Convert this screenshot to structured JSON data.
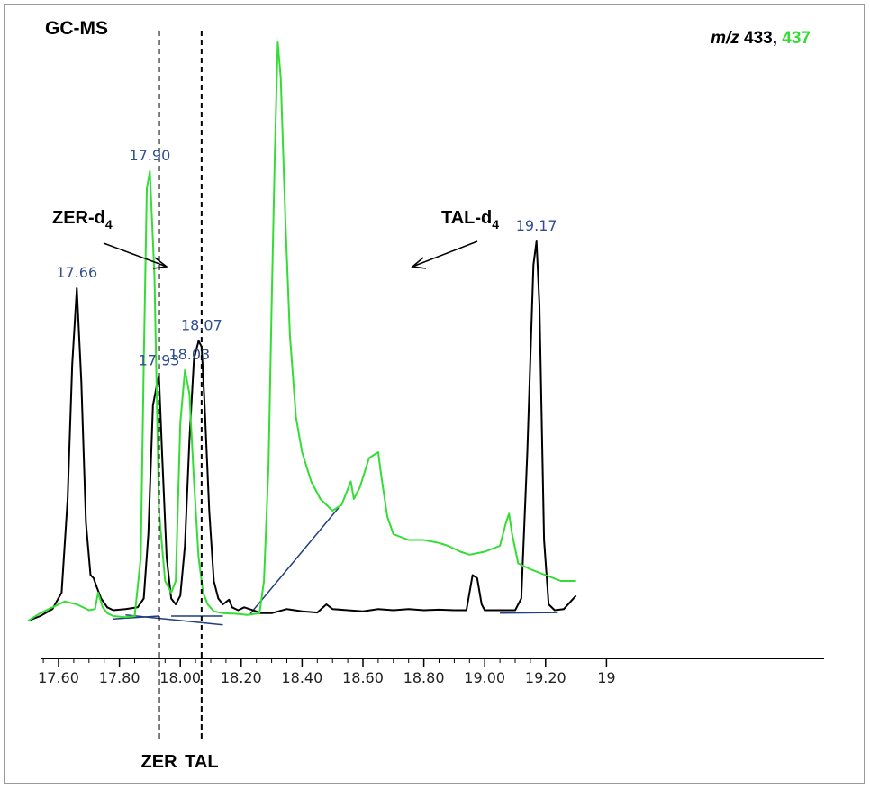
{
  "chart_data": {
    "type": "line",
    "title": "GC-MS",
    "legend": {
      "prefix_italic": "m/z",
      "prefix_rest": " 433, ",
      "second": "437",
      "placement": "top-right"
    },
    "xlim": [
      17.5,
      19.3
    ],
    "xticks": [
      "17.60",
      "17.80",
      "18.00",
      "18.20",
      "18.40",
      "18.60",
      "18.80",
      "19.00",
      "19.20",
      "19"
    ],
    "xtick_values": [
      17.6,
      17.8,
      18.0,
      18.2,
      18.4,
      18.6,
      18.8,
      19.0,
      19.2,
      19.4
    ],
    "grid": false,
    "colors": {
      "ion433": "#000000",
      "ion437": "#33dd33",
      "baseline": "#1f3f7f",
      "labels": "#2f4f8f"
    },
    "series": [
      {
        "key": "ion433",
        "x": [
          17.5,
          17.54,
          17.58,
          17.61,
          17.63,
          17.645,
          17.66,
          17.675,
          17.69,
          17.705,
          17.715,
          17.725,
          17.74,
          17.76,
          17.78,
          17.82,
          17.86,
          17.88,
          17.895,
          17.91,
          17.925,
          17.93,
          17.94,
          17.955,
          17.97,
          17.985,
          18.0,
          18.015,
          18.03,
          18.045,
          18.06,
          18.07,
          18.08,
          18.095,
          18.11,
          18.125,
          18.14,
          18.16,
          18.17,
          18.19,
          18.21,
          18.25,
          18.26,
          18.3,
          18.35,
          18.4,
          18.45,
          18.48,
          18.5,
          18.55,
          18.6,
          18.65,
          18.7,
          18.75,
          18.8,
          18.85,
          18.9,
          18.94,
          18.96,
          18.975,
          18.99,
          19.0,
          19.05,
          19.1,
          19.12,
          19.14,
          19.16,
          19.17,
          19.18,
          19.195,
          19.21,
          19.23,
          19.26,
          19.3
        ],
        "y": [
          1.2,
          2.0,
          3.2,
          6.0,
          22.0,
          45.0,
          58.0,
          42.0,
          18.0,
          9.0,
          8.5,
          7.0,
          5.0,
          3.5,
          3.0,
          3.2,
          3.5,
          5.0,
          16.0,
          38.0,
          42.0,
          43.0,
          30.0,
          12.0,
          5.0,
          4.0,
          5.5,
          14.0,
          32.0,
          46.0,
          49.0,
          48.0,
          38.0,
          20.0,
          8.0,
          5.0,
          4.0,
          4.8,
          3.5,
          3.0,
          3.5,
          2.8,
          2.5,
          2.5,
          3.2,
          2.8,
          2.6,
          4.0,
          3.2,
          3.0,
          2.8,
          3.2,
          3.0,
          3.2,
          3.0,
          3.1,
          3.0,
          3.0,
          9.0,
          8.5,
          4.0,
          3.0,
          3.0,
          3.0,
          5.0,
          30.0,
          62.0,
          66.0,
          55.0,
          15.0,
          4.0,
          3.0,
          3.2,
          5.5
        ]
      },
      {
        "key": "ion437",
        "x": [
          17.5,
          17.54,
          17.58,
          17.62,
          17.66,
          17.7,
          17.72,
          17.73,
          17.745,
          17.76,
          17.78,
          17.82,
          17.85,
          17.87,
          17.88,
          17.89,
          17.9,
          17.915,
          17.93,
          17.95,
          17.97,
          17.985,
          18.0,
          18.015,
          18.03,
          18.045,
          18.06,
          18.075,
          18.09,
          18.11,
          18.14,
          18.18,
          18.22,
          18.26,
          18.275,
          18.29,
          18.3,
          18.31,
          18.32,
          18.33,
          18.345,
          18.36,
          18.38,
          18.4,
          18.43,
          18.46,
          18.5,
          18.53,
          18.56,
          18.57,
          18.59,
          18.62,
          18.65,
          18.66,
          18.68,
          18.7,
          18.75,
          18.8,
          18.85,
          18.88,
          18.92,
          18.95,
          19.0,
          19.05,
          19.07,
          19.08,
          19.09,
          19.11,
          19.15,
          19.2,
          19.25,
          19.3
        ],
        "y": [
          1.2,
          2.5,
          3.5,
          4.5,
          4.0,
          3.0,
          3.2,
          6.0,
          3.5,
          2.5,
          2.0,
          1.8,
          2.0,
          12.0,
          45.0,
          75.0,
          78.0,
          60.0,
          20.0,
          8.0,
          6.0,
          8.0,
          35.0,
          44.0,
          40.0,
          25.0,
          12.0,
          6.0,
          4.0,
          2.8,
          2.5,
          2.4,
          2.2,
          2.5,
          8.0,
          28.0,
          55.0,
          80.0,
          100.0,
          94.0,
          70.0,
          50.0,
          36.0,
          30.0,
          25.0,
          22.0,
          20.0,
          21.0,
          25.0,
          22.0,
          24.0,
          29.0,
          30.0,
          26.0,
          19.0,
          16.0,
          15.0,
          15.0,
          14.5,
          14.0,
          13.0,
          12.5,
          13.0,
          14.0,
          18.0,
          19.5,
          16.0,
          11.0,
          10.0,
          9.0,
          8.0,
          8.0
        ]
      }
    ],
    "baselines": [
      {
        "x": [
          17.78,
          17.93
        ],
        "y": [
          1.5,
          2.0
        ]
      },
      {
        "x": [
          17.82,
          18.14
        ],
        "y": [
          2.2,
          0.5
        ]
      },
      {
        "x": [
          17.97,
          18.14
        ],
        "y": [
          2.0,
          2.0
        ]
      },
      {
        "x": [
          18.23,
          18.52
        ],
        "y": [
          2.4,
          20.5
        ]
      },
      {
        "x": [
          19.05,
          19.24
        ],
        "y": [
          2.5,
          2.6
        ]
      }
    ],
    "peak_labels": [
      {
        "text": "17.66",
        "x": 17.66,
        "y": 58
      },
      {
        "text": "17.90",
        "x": 17.9,
        "y": 78
      },
      {
        "text": "17.93",
        "x": 17.93,
        "y": 43
      },
      {
        "text": "18.03",
        "x": 18.03,
        "y": 44
      },
      {
        "text": "18.07",
        "x": 18.07,
        "y": 49
      },
      {
        "text": "19.17",
        "x": 19.17,
        "y": 66
      }
    ],
    "annotations": [
      {
        "base": "ZER-d",
        "sub": "4"
      },
      {
        "base": "TAL-d",
        "sub": "4"
      }
    ],
    "markers": [
      {
        "text": "ZER",
        "x": 17.93
      },
      {
        "text": "TAL",
        "x": 18.07
      }
    ]
  }
}
